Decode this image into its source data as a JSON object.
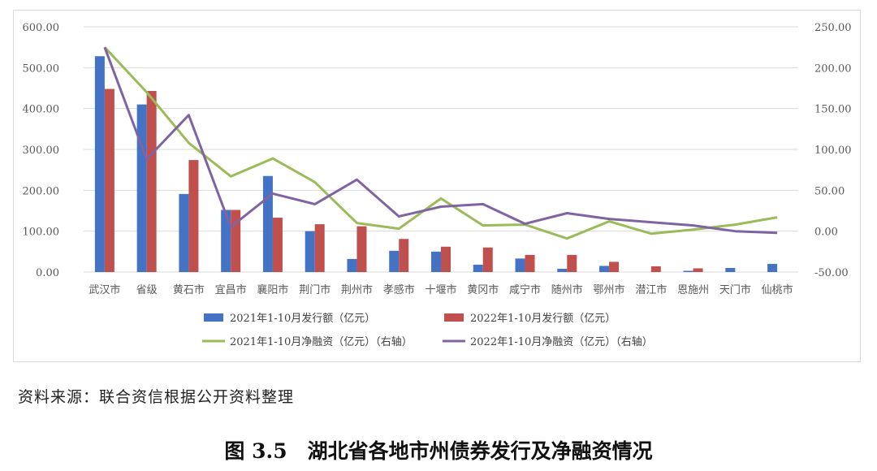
{
  "chart_data": {
    "type": "bar",
    "categories": [
      "武汉市",
      "省级",
      "黄石市",
      "宜昌市",
      "襄阳市",
      "荆门市",
      "荆州市",
      "孝感市",
      "十堰市",
      "黄冈市",
      "咸宁市",
      "随州市",
      "鄂州市",
      "潜江市",
      "恩施州",
      "天门市",
      "仙桃市"
    ],
    "series": [
      {
        "name": "2021年1-10月发行额（亿元）",
        "type": "bar",
        "axis": "left",
        "color": "#4472c4",
        "values": [
          528,
          410,
          191,
          152,
          235,
          100,
          32,
          52,
          50,
          18,
          33,
          8,
          15,
          0,
          3,
          10,
          20
        ]
      },
      {
        "name": "2022年1-10月发行额（亿元）",
        "type": "bar",
        "axis": "left",
        "color": "#c0504d",
        "values": [
          448,
          443,
          274,
          152,
          133,
          117,
          112,
          81,
          62,
          60,
          42,
          42,
          25,
          14,
          9,
          0,
          0
        ]
      },
      {
        "name": "2021年1-10月净融资（亿元）（右轴）",
        "type": "line",
        "axis": "right",
        "color": "#9bbb59",
        "values": [
          225,
          170,
          108,
          67,
          89,
          60,
          10,
          3,
          40,
          7,
          8,
          -9,
          12,
          -3,
          2,
          8,
          17
        ]
      },
      {
        "name": "2022年1-10月净融资（亿元）（右轴）",
        "type": "line",
        "axis": "right",
        "color": "#8064a2",
        "values": [
          225,
          88,
          142,
          5,
          46,
          33,
          63,
          18,
          30,
          33,
          9,
          22,
          15,
          11,
          7,
          0,
          -2
        ]
      }
    ],
    "y_left": {
      "min": 0,
      "max": 600,
      "step": 100,
      "tick_labels": [
        "0.00",
        "100.00",
        "200.00",
        "300.00",
        "400.00",
        "500.00",
        "600.00"
      ]
    },
    "y_right": {
      "min": -50,
      "max": 250,
      "step": 50,
      "tick_labels": [
        "-50.00",
        "0.00",
        "50.00",
        "100.00",
        "150.00",
        "200.00",
        "250.00"
      ]
    },
    "grid": true,
    "legend_position": "bottom"
  },
  "source_note": "资料来源：联合资信根据公开资料整理",
  "caption": "图 3.5　湖北省各地市州债券发行及净融资情况"
}
